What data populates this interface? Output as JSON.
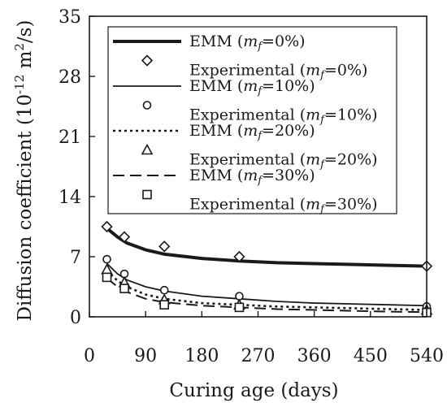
{
  "chart_data": {
    "type": "line",
    "xlabel": "Curing age (days)",
    "ylabel_main": "Diffusion coefficient (10",
    "ylabel_exp": "-12",
    "ylabel_unit": " m",
    "ylabel_exp2": "2",
    "ylabel_end": "/s)",
    "xlim": [
      0,
      540
    ],
    "ylim": [
      0,
      35
    ],
    "xticks": [
      0,
      90,
      180,
      270,
      360,
      450,
      540
    ],
    "yticks": [
      0,
      7,
      14,
      21,
      28,
      35
    ],
    "legend_placement": "top-right",
    "series": [
      {
        "kind": "model",
        "label_prefix": "EMM (",
        "label_var": "m",
        "label_sub": "f",
        "label_suffix": "=0%)",
        "style": "thick-solid",
        "x": [
          28,
          45,
          60,
          90,
          120,
          180,
          240,
          300,
          360,
          420,
          480,
          540
        ],
        "y": [
          10.3,
          9.3,
          8.6,
          7.8,
          7.3,
          6.8,
          6.5,
          6.3,
          6.2,
          6.1,
          6.0,
          5.9
        ]
      },
      {
        "kind": "experimental",
        "label_prefix": "Experimental (",
        "label_var": "m",
        "label_sub": "f",
        "label_suffix": "=0%)",
        "marker": "diamond",
        "x": [
          28,
          56,
          120,
          240,
          540
        ],
        "y": [
          10.5,
          9.3,
          8.2,
          7.0,
          5.9
        ]
      },
      {
        "kind": "model",
        "label_prefix": "EMM (",
        "label_var": "m",
        "label_sub": "f",
        "label_suffix": "=10%)",
        "style": "thin-solid",
        "x": [
          28,
          45,
          60,
          90,
          120,
          180,
          240,
          300,
          360,
          420,
          480,
          540
        ],
        "y": [
          6.2,
          5.0,
          4.3,
          3.5,
          3.0,
          2.4,
          2.1,
          1.8,
          1.6,
          1.5,
          1.4,
          1.3
        ]
      },
      {
        "kind": "experimental",
        "label_prefix": "Experimental (",
        "label_var": "m",
        "label_sub": "f",
        "label_suffix": "=10%)",
        "marker": "circle",
        "x": [
          28,
          56,
          120,
          240,
          540
        ],
        "y": [
          6.7,
          5.0,
          3.1,
          2.4,
          1.2
        ]
      },
      {
        "kind": "model",
        "label_prefix": "EMM (",
        "label_var": "m",
        "label_sub": "f",
        "label_suffix": "=20%)",
        "style": "dotted",
        "x": [
          28,
          45,
          60,
          90,
          120,
          180,
          240,
          300,
          360,
          420,
          480,
          540
        ],
        "y": [
          5.4,
          4.2,
          3.5,
          2.6,
          2.1,
          1.6,
          1.4,
          1.2,
          1.1,
          1.0,
          0.9,
          0.8
        ]
      },
      {
        "kind": "experimental",
        "label_prefix": "Experimental (",
        "label_var": "m",
        "label_sub": "f",
        "label_suffix": "=20%)",
        "marker": "triangle",
        "x": [
          28,
          56,
          120,
          240,
          540
        ],
        "y": [
          5.5,
          4.0,
          2.0,
          1.4,
          0.8
        ]
      },
      {
        "kind": "model",
        "label_prefix": "EMM (",
        "label_var": "m",
        "label_sub": "f",
        "label_suffix": "=30%)",
        "style": "dashed",
        "x": [
          28,
          45,
          60,
          90,
          120,
          180,
          240,
          300,
          360,
          420,
          480,
          540
        ],
        "y": [
          4.5,
          3.5,
          2.9,
          2.1,
          1.7,
          1.3,
          1.1,
          0.9,
          0.8,
          0.7,
          0.6,
          0.55
        ]
      },
      {
        "kind": "experimental",
        "label_prefix": "Experimental (",
        "label_var": "m",
        "label_sub": "f",
        "label_suffix": "=30%)",
        "marker": "square",
        "x": [
          28,
          56,
          120,
          240,
          540
        ],
        "y": [
          4.6,
          3.3,
          1.4,
          1.1,
          0.5
        ]
      }
    ]
  }
}
